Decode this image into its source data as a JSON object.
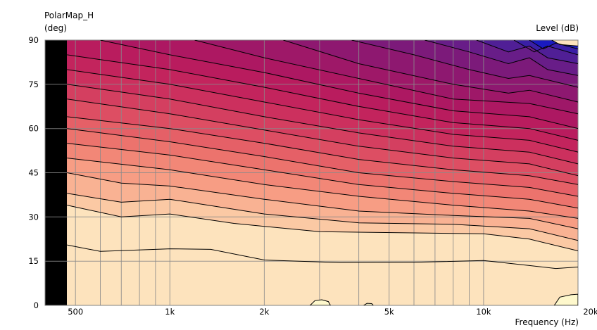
{
  "chart_data": {
    "type": "heatmap",
    "title": "PolarMap_H",
    "ylabel": "(deg)",
    "colorbar_label": "Level  (dB)",
    "xlabel": "Frequency  (Hz)",
    "x_scale": "log",
    "xlim": [
      400,
      20000
    ],
    "ylim": [
      0,
      90
    ],
    "x_ticks": [
      {
        "value": 500,
        "label": "500"
      },
      {
        "value": 1000,
        "label": "1k"
      },
      {
        "value": 2000,
        "label": "2k"
      },
      {
        "value": 5000,
        "label": "5k"
      },
      {
        "value": 10000,
        "label": "10k"
      },
      {
        "value": 20000,
        "label": "20k"
      }
    ],
    "y_ticks": [
      {
        "value": 0,
        "label": "0"
      },
      {
        "value": 15,
        "label": "15"
      },
      {
        "value": 30,
        "label": "30"
      },
      {
        "value": 45,
        "label": "45"
      },
      {
        "value": 60,
        "label": "60"
      },
      {
        "value": 75,
        "label": "75"
      },
      {
        "value": 90,
        "label": "90"
      }
    ],
    "x_gridlines": [
      500,
      600,
      700,
      800,
      900,
      1000,
      2000,
      3000,
      4000,
      5000,
      6000,
      7000,
      8000,
      9000,
      10000,
      20000
    ],
    "grid": true,
    "data_start_hz": 470,
    "no_data_color": "#000000",
    "contours": [
      {
        "fill": "#fde3bd",
        "pts": [
          [
            470,
            20.5
          ],
          [
            600,
            18.3
          ],
          [
            1000,
            19.2
          ],
          [
            1350,
            19
          ],
          [
            2000,
            15.4
          ],
          [
            3500,
            14.5
          ],
          [
            6000,
            14.6
          ],
          [
            10000,
            15.2
          ],
          [
            14000,
            13.5
          ],
          [
            17000,
            12.5
          ],
          [
            20000,
            13
          ]
        ]
      },
      {
        "fill": "#fbc9a4",
        "pts": [
          [
            470,
            34
          ],
          [
            700,
            30
          ],
          [
            1000,
            31
          ],
          [
            1600,
            27.8
          ],
          [
            3000,
            25
          ],
          [
            6000,
            24.6
          ],
          [
            10000,
            24.3
          ],
          [
            14000,
            22.5
          ],
          [
            20000,
            18.5
          ]
        ]
      },
      {
        "fill": "#f9b293",
        "pts": [
          [
            470,
            38
          ],
          [
            700,
            35
          ],
          [
            1000,
            36
          ],
          [
            2000,
            31
          ],
          [
            4000,
            28
          ],
          [
            8000,
            27.5
          ],
          [
            14000,
            26
          ],
          [
            20000,
            22
          ]
        ]
      },
      {
        "fill": "#f79d84",
        "pts": [
          [
            470,
            45
          ],
          [
            700,
            41.5
          ],
          [
            1000,
            40.5
          ],
          [
            2000,
            36
          ],
          [
            4000,
            32
          ],
          [
            8000,
            30.5
          ],
          [
            14000,
            29.5
          ],
          [
            20000,
            26
          ]
        ]
      },
      {
        "fill": "#f28777",
        "pts": [
          [
            470,
            50
          ],
          [
            1000,
            46
          ],
          [
            2000,
            41
          ],
          [
            4000,
            37
          ],
          [
            8000,
            34
          ],
          [
            14000,
            32
          ],
          [
            20000,
            29.5
          ]
        ]
      },
      {
        "fill": "#ec736d",
        "pts": [
          [
            470,
            55
          ],
          [
            1000,
            51
          ],
          [
            2000,
            46
          ],
          [
            4000,
            41
          ],
          [
            8000,
            38
          ],
          [
            14000,
            36
          ],
          [
            20000,
            33
          ]
        ]
      },
      {
        "fill": "#e56067",
        "pts": [
          [
            470,
            60
          ],
          [
            1000,
            55.5
          ],
          [
            2000,
            50.5
          ],
          [
            4000,
            45
          ],
          [
            8000,
            42
          ],
          [
            14000,
            40
          ],
          [
            20000,
            37
          ]
        ]
      },
      {
        "fill": "#dd4e63",
        "pts": [
          [
            470,
            64
          ],
          [
            1000,
            60
          ],
          [
            2000,
            55
          ],
          [
            4000,
            49.5
          ],
          [
            8000,
            46
          ],
          [
            14000,
            44
          ],
          [
            20000,
            41
          ]
        ]
      },
      {
        "fill": "#d43f60",
        "pts": [
          [
            470,
            70
          ],
          [
            1000,
            65
          ],
          [
            2000,
            59.5
          ],
          [
            4000,
            54
          ],
          [
            8000,
            50
          ],
          [
            14000,
            48
          ],
          [
            20000,
            44
          ]
        ]
      },
      {
        "fill": "#cc305e",
        "pts": [
          [
            470,
            75
          ],
          [
            1000,
            70
          ],
          [
            2000,
            64
          ],
          [
            4000,
            58.5
          ],
          [
            8000,
            54
          ],
          [
            14000,
            52
          ],
          [
            20000,
            48
          ]
        ]
      },
      {
        "fill": "#c3245d",
        "pts": [
          [
            470,
            80
          ],
          [
            1000,
            75
          ],
          [
            2000,
            69
          ],
          [
            4000,
            63
          ],
          [
            8000,
            58
          ],
          [
            14000,
            56
          ],
          [
            20000,
            52
          ]
        ]
      },
      {
        "fill": "#b91c5e",
        "pts": [
          [
            470,
            85
          ],
          [
            1000,
            80
          ],
          [
            2000,
            74
          ],
          [
            4000,
            67.5
          ],
          [
            8000,
            62
          ],
          [
            14000,
            60
          ],
          [
            20000,
            56
          ]
        ]
      },
      {
        "fill": "#ad1862",
        "pts": [
          [
            600,
            90
          ],
          [
            1000,
            85
          ],
          [
            2000,
            79
          ],
          [
            4000,
            72
          ],
          [
            8000,
            66
          ],
          [
            14000,
            64
          ],
          [
            20000,
            60
          ]
        ]
      },
      {
        "fill": "#9e1868",
        "pts": [
          [
            1200,
            90
          ],
          [
            2000,
            84
          ],
          [
            4000,
            77
          ],
          [
            8000,
            70
          ],
          [
            14000,
            68.5
          ],
          [
            20000,
            65
          ]
        ]
      },
      {
        "fill": "#8e1870",
        "pts": [
          [
            2300,
            90
          ],
          [
            4000,
            82
          ],
          [
            8000,
            75
          ],
          [
            12000,
            72
          ],
          [
            14000,
            73
          ],
          [
            20000,
            69
          ]
        ]
      },
      {
        "fill": "#7c1a7a",
        "pts": [
          [
            3800,
            90
          ],
          [
            6000,
            85
          ],
          [
            9000,
            80
          ],
          [
            12000,
            77
          ],
          [
            14000,
            78
          ],
          [
            20000,
            74
          ]
        ]
      },
      {
        "fill": "#681d88",
        "pts": [
          [
            6500,
            90
          ],
          [
            9000,
            86
          ],
          [
            12000,
            82
          ],
          [
            14000,
            84
          ],
          [
            16000,
            80
          ],
          [
            20000,
            78
          ]
        ]
      },
      {
        "fill": "#501f96",
        "pts": [
          [
            9500,
            90
          ],
          [
            12000,
            86
          ],
          [
            14000,
            88
          ],
          [
            16000,
            84
          ],
          [
            20000,
            82
          ]
        ]
      },
      {
        "fill": "#3a1fa6",
        "pts": [
          [
            12500,
            90
          ],
          [
            14500,
            86
          ],
          [
            16000,
            88
          ],
          [
            20000,
            85
          ]
        ]
      },
      {
        "fill": "#1a1ac0",
        "pts": [
          [
            14000,
            90
          ],
          [
            15500,
            87
          ],
          [
            17000,
            89
          ],
          [
            20000,
            87
          ]
        ]
      },
      {
        "fill": "#000000",
        "pts": [
          [
            16500,
            90
          ],
          [
            17500,
            88.5
          ],
          [
            20000,
            88
          ]
        ]
      }
    ],
    "blobs": [
      {
        "fill": "#fef8cc",
        "stroke": "#000",
        "pts": [
          [
            2800,
            0
          ],
          [
            2900,
            1.6
          ],
          [
            3050,
            1.9
          ],
          [
            3200,
            1.3
          ],
          [
            3250,
            0
          ]
        ]
      },
      {
        "fill": "#fef8cc",
        "stroke": "#000",
        "pts": [
          [
            4150,
            0
          ],
          [
            4250,
            0.7
          ],
          [
            4400,
            0.6
          ],
          [
            4450,
            0
          ]
        ]
      },
      {
        "fill": "#fef8cc",
        "stroke": "#000",
        "pts": [
          [
            16800,
            0
          ],
          [
            17500,
            2.8
          ],
          [
            19000,
            3.6
          ],
          [
            20000,
            3.8
          ],
          [
            20000,
            0
          ]
        ]
      }
    ]
  }
}
